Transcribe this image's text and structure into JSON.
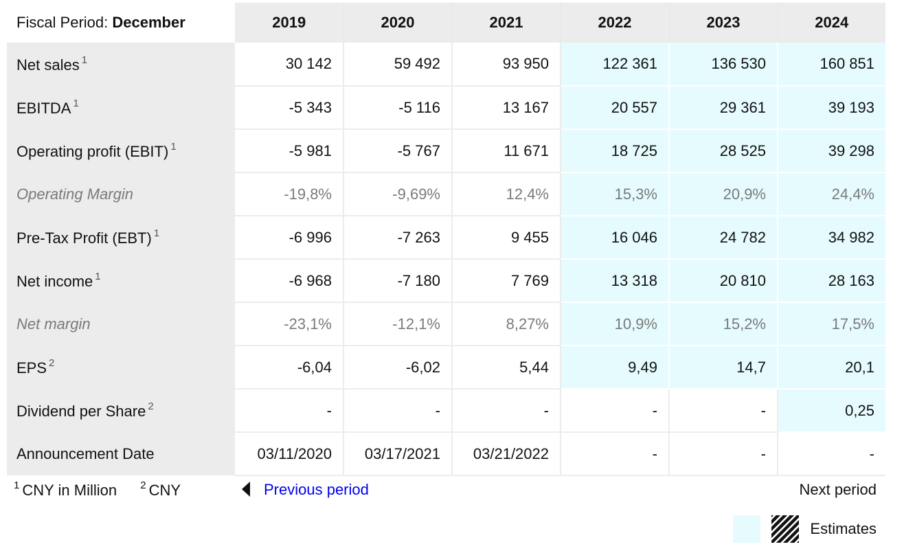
{
  "table": {
    "header": {
      "label_prefix": "Fiscal Period: ",
      "label_value": "December",
      "years": [
        "2019",
        "2020",
        "2021",
        "2022",
        "2023",
        "2024"
      ]
    },
    "rows": [
      {
        "label": "Net sales",
        "footnote": "1",
        "values": [
          "30 142",
          "59 492",
          "93 950",
          "122 361",
          "136 530",
          "160 851"
        ]
      },
      {
        "label": "EBITDA",
        "footnote": "1",
        "values": [
          "-5 343",
          "-5 116",
          "13 167",
          "20 557",
          "29 361",
          "39 193"
        ]
      },
      {
        "label": "Operating profit (EBIT)",
        "footnote": "1",
        "values": [
          "-5 981",
          "-5 767",
          "11 671",
          "18 725",
          "28 525",
          "39 298"
        ]
      },
      {
        "label": "Operating Margin",
        "footnote": "",
        "values": [
          "-19,8%",
          "-9,69%",
          "12,4%",
          "15,3%",
          "20,9%",
          "24,4%"
        ]
      },
      {
        "label": "Pre-Tax Profit (EBT)",
        "footnote": "1",
        "values": [
          "-6 996",
          "-7 263",
          "9 455",
          "16 046",
          "24 782",
          "34 982"
        ]
      },
      {
        "label": "Net income",
        "footnote": "1",
        "values": [
          "-6 968",
          "-7 180",
          "7 769",
          "13 318",
          "20 810",
          "28 163"
        ]
      },
      {
        "label": "Net margin",
        "footnote": "",
        "values": [
          "-23,1%",
          "-12,1%",
          "8,27%",
          "10,9%",
          "15,2%",
          "17,5%"
        ]
      },
      {
        "label": "EPS",
        "footnote": "2",
        "values": [
          "-6,04",
          "-6,02",
          "5,44",
          "9,49",
          "14,7",
          "20,1"
        ]
      },
      {
        "label": "Dividend per Share",
        "footnote": "2",
        "values": [
          "-",
          "-",
          "-",
          "-",
          "-",
          "0,25"
        ]
      },
      {
        "label": "Announcement Date",
        "footnote": "",
        "values": [
          "03/11/2020",
          "03/17/2021",
          "03/21/2022",
          "-",
          "-",
          "-"
        ]
      }
    ]
  },
  "footnotes": [
    {
      "marker": "1",
      "text": "CNY in Million"
    },
    {
      "marker": "2",
      "text": "CNY"
    }
  ],
  "nav": {
    "previous_label": "Previous period",
    "next_label": "Next period"
  },
  "legend": {
    "label": "Estimates",
    "estimate_color": "#e6fbfd"
  },
  "colors": {
    "header_bg": "#ececec",
    "link": "#0000ee",
    "ratio_text": "#7a7a7a"
  }
}
